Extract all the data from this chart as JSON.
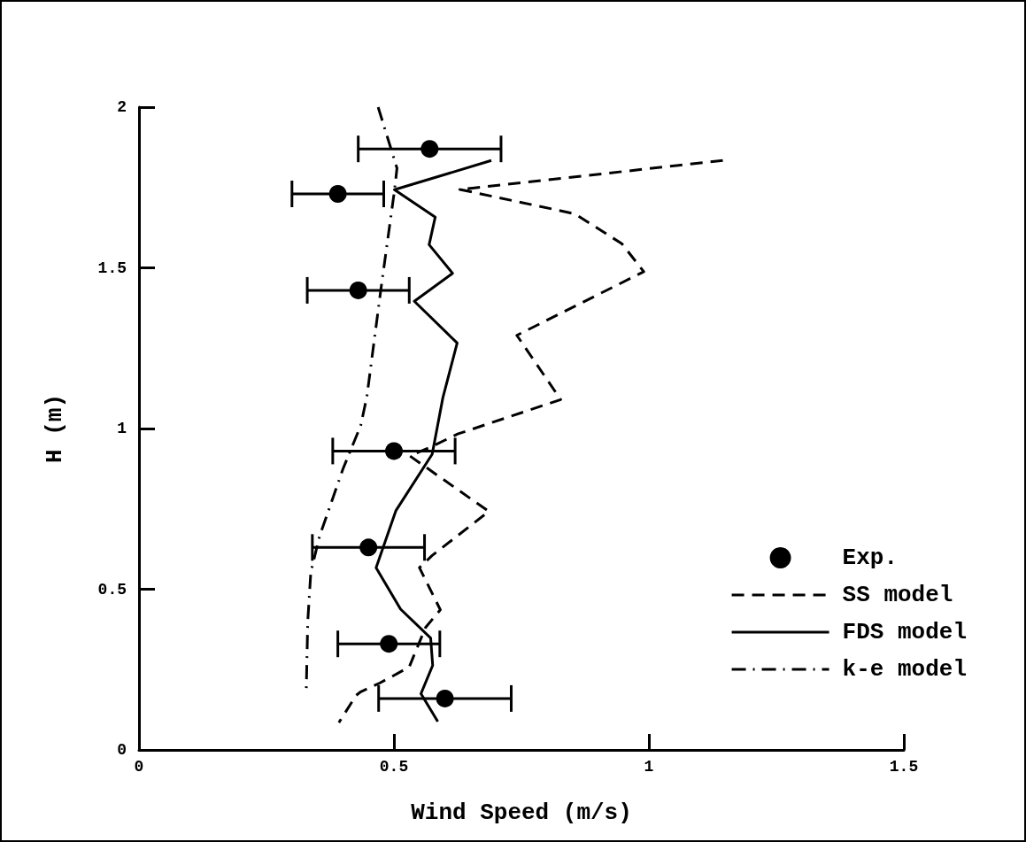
{
  "chart_data": {
    "type": "line",
    "xlabel": "Wind Speed (m/s)",
    "ylabel": "H (m)",
    "xlim": [
      0,
      1.5
    ],
    "xticks": [
      0,
      0.5,
      1,
      1.5
    ],
    "ylim": [
      0,
      2
    ],
    "yticks": [
      0,
      0.5,
      1,
      1.5,
      2
    ],
    "grid": false,
    "legend": "bottom right",
    "series": [
      {
        "name": "Exp.",
        "type": "scatter",
        "color": "#000000",
        "marker": "circle",
        "x": [
          0.57,
          0.39,
          0.43,
          0.5,
          0.45,
          0.49,
          0.6
        ],
        "values": [
          1.87,
          1.73,
          1.43,
          0.93,
          0.63,
          0.33,
          0.16
        ],
        "xerrors": [
          [
            0.43,
            0.71
          ],
          [
            0.3,
            0.48
          ],
          [
            0.33,
            0.53
          ],
          [
            0.38,
            0.62
          ],
          [
            0.34,
            0.56
          ],
          [
            0.39,
            0.59
          ],
          [
            0.47,
            0.73
          ]
        ]
      },
      {
        "name": "SS model",
        "type": "line",
        "color": "#000000",
        "marker": "none",
        "line_style": "dashed",
        "x": [
          1.145,
          0.654,
          0.629,
          0.855,
          0.947,
          0.99,
          0.741,
          0.827,
          0.625,
          0.573,
          0.531,
          0.686,
          0.575,
          0.55,
          0.591,
          0.562,
          0.539,
          0.53,
          0.498,
          0.472,
          0.435,
          0.426,
          0.392
        ],
        "values": [
          1.834,
          1.748,
          1.744,
          1.668,
          1.575,
          1.488,
          1.29,
          1.09,
          0.983,
          0.943,
          0.915,
          0.742,
          0.605,
          0.567,
          0.436,
          0.381,
          0.293,
          0.258,
          0.23,
          0.208,
          0.181,
          0.17,
          0.085
        ]
      },
      {
        "name": "FDS model",
        "type": "line",
        "color": "#000000",
        "marker": "none",
        "line_style": "solid",
        "x": [
          0.691,
          0.501,
          0.581,
          0.569,
          0.615,
          0.54,
          0.624,
          0.596,
          0.575,
          0.504,
          0.465,
          0.513,
          0.572,
          0.576,
          0.553,
          0.586
        ],
        "values": [
          1.834,
          1.743,
          1.658,
          1.572,
          1.483,
          1.396,
          1.266,
          1.096,
          0.92,
          0.745,
          0.567,
          0.438,
          0.348,
          0.263,
          0.175,
          0.088
        ]
      },
      {
        "name": "k-e model",
        "type": "line",
        "color": "#000000",
        "marker": "none",
        "line_style": "dashdot",
        "x": [
          0.469,
          0.506,
          0.501,
          0.475,
          0.447,
          0.435,
          0.4,
          0.354,
          0.337,
          0.331,
          0.328
        ],
        "values": [
          2.0,
          1.81,
          1.74,
          1.44,
          1.1,
          1.01,
          0.874,
          0.664,
          0.553,
          0.4,
          0.181
        ]
      }
    ]
  }
}
